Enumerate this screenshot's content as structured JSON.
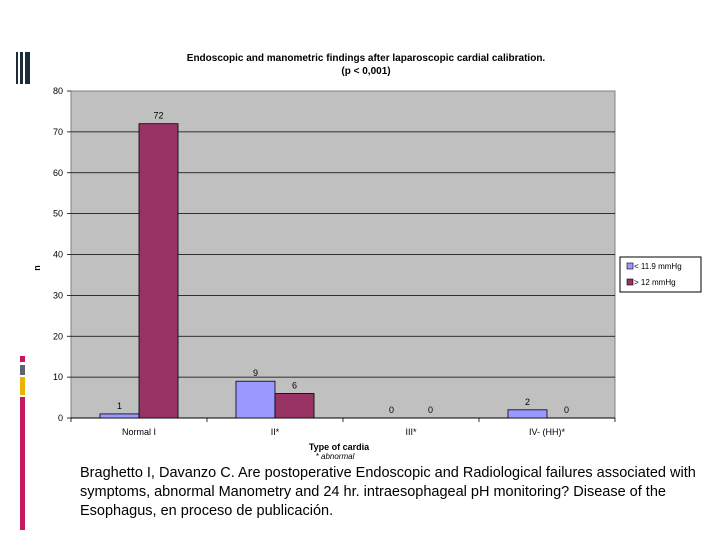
{
  "chart_data": {
    "type": "bar",
    "title": [
      "Endoscopic and manometric findings after laparoscopic cardial calibration.",
      "(p < 0,001)"
    ],
    "xlabel": "Type of cardia",
    "xlabel_note": "* abnormal",
    "ylabel": "n",
    "ylim": [
      0,
      80
    ],
    "yticks": [
      0,
      10,
      20,
      30,
      40,
      50,
      60,
      70,
      80
    ],
    "grid": true,
    "legend_position": "right",
    "categories": [
      "Normal  I",
      "II*",
      "III*",
      "IV- (HH)*"
    ],
    "series": [
      {
        "name": "< 11.9 mmHg",
        "values": [
          1,
          9,
          0,
          2
        ],
        "color": "#9999ff"
      },
      {
        "name": "> 12 mmHg",
        "values": [
          72,
          6,
          0,
          0
        ],
        "color": "#993366"
      }
    ],
    "plot_background": "#c0c0c0"
  },
  "caption": "Braghetto I, Davanzo C. Are postoperative Endoscopic and Radiological failures associated with symptoms, abnormal Manometry and 24 hr. intraesophageal pH monitoring? Disease of the Esophagus, en proceso de  publicación.",
  "decoration_colors": {
    "dark": "#1e2b3a",
    "magenta": "#c8185f",
    "gray": "#5c6470",
    "gold": "#e8b400"
  }
}
